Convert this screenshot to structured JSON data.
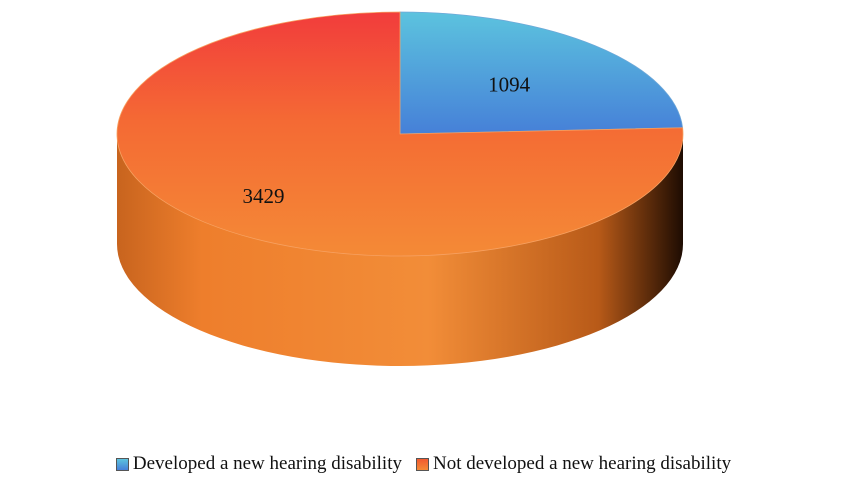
{
  "chart_data": {
    "type": "pie",
    "title": "",
    "three_d": true,
    "legend_position": "bottom",
    "categories": [
      "Developed a new hearing disability",
      "Not developed a new hearing disability"
    ],
    "values": [
      1094,
      3429
    ],
    "data_labels": [
      "1094",
      "3429"
    ],
    "colors": [
      "#4FA3DA",
      "#F2852E"
    ],
    "series": [
      {
        "name": "Developed a new hearing disability",
        "value": 1094,
        "color": "#4FA3DA"
      },
      {
        "name": "Not developed a new hearing disability",
        "value": 3429,
        "color": "#F2852E"
      }
    ]
  }
}
